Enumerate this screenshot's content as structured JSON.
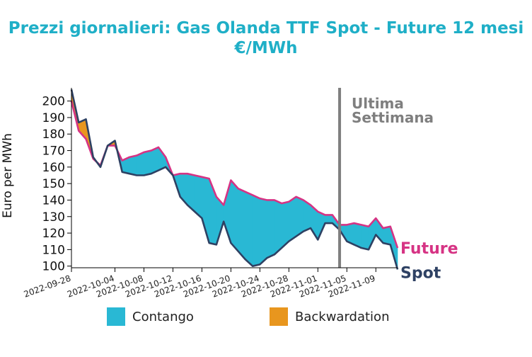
{
  "chart_data": {
    "type": "area",
    "title": "Prezzi giornalieri: Gas Olanda TTF Spot - Future 12 mesi",
    "subtitle": "€/MWh",
    "ylabel": "Euro per MWh",
    "xlabel": "",
    "ylim": [
      99,
      208
    ],
    "yticks": [
      100,
      110,
      120,
      130,
      140,
      150,
      160,
      170,
      180,
      190,
      200
    ],
    "xlim": [
      "2022-09-28",
      "2022-11-12"
    ],
    "xticks": [
      "2022-09-28",
      "2022-10-04",
      "2022-10-08",
      "2022-10-12",
      "2022-10-16",
      "2022-10-20",
      "2022-10-24",
      "2022-10-28",
      "2022-11-01",
      "2022-11-05",
      "2022-11-09"
    ],
    "series": [
      {
        "name": "Future",
        "color": "#d63384",
        "x": [
          "2022-09-28",
          "2022-09-29",
          "2022-09-30",
          "2022-10-01",
          "2022-10-02",
          "2022-10-03",
          "2022-10-04",
          "2022-10-05",
          "2022-10-06",
          "2022-10-07",
          "2022-10-08",
          "2022-10-09",
          "2022-10-10",
          "2022-10-11",
          "2022-10-12",
          "2022-10-13",
          "2022-10-14",
          "2022-10-15",
          "2022-10-16",
          "2022-10-17",
          "2022-10-18",
          "2022-10-19",
          "2022-10-20",
          "2022-10-21",
          "2022-10-22",
          "2022-10-23",
          "2022-10-24",
          "2022-10-25",
          "2022-10-26",
          "2022-10-27",
          "2022-10-28",
          "2022-10-29",
          "2022-10-30",
          "2022-10-31",
          "2022-11-01",
          "2022-11-02",
          "2022-11-03",
          "2022-11-04",
          "2022-11-05",
          "2022-11-06",
          "2022-11-07",
          "2022-11-08",
          "2022-11-09",
          "2022-11-10",
          "2022-11-11",
          "2022-11-12"
        ],
        "values": [
          200,
          182,
          177,
          165,
          161,
          173,
          173,
          164,
          166,
          167,
          169,
          170,
          172,
          166,
          155,
          156,
          156,
          155,
          154,
          153,
          142,
          137,
          152,
          147,
          145,
          143,
          141,
          140,
          140,
          138,
          139,
          142,
          140,
          137,
          133,
          131,
          131,
          125,
          125,
          126,
          125,
          124,
          129,
          123,
          124,
          111
        ]
      },
      {
        "name": "Spot",
        "color": "#2e4163",
        "x": [
          "2022-09-28",
          "2022-09-29",
          "2022-09-30",
          "2022-10-01",
          "2022-10-02",
          "2022-10-03",
          "2022-10-04",
          "2022-10-05",
          "2022-10-06",
          "2022-10-07",
          "2022-10-08",
          "2022-10-09",
          "2022-10-10",
          "2022-10-11",
          "2022-10-12",
          "2022-10-13",
          "2022-10-14",
          "2022-10-15",
          "2022-10-16",
          "2022-10-17",
          "2022-10-18",
          "2022-10-19",
          "2022-10-20",
          "2022-10-21",
          "2022-10-22",
          "2022-10-23",
          "2022-10-24",
          "2022-10-25",
          "2022-10-26",
          "2022-10-27",
          "2022-10-28",
          "2022-10-29",
          "2022-10-30",
          "2022-10-31",
          "2022-11-01",
          "2022-11-02",
          "2022-11-03",
          "2022-11-04",
          "2022-11-05",
          "2022-11-06",
          "2022-11-07",
          "2022-11-08",
          "2022-11-09",
          "2022-11-10",
          "2022-11-11",
          "2022-11-12"
        ],
        "values": [
          207,
          187,
          189,
          166,
          160,
          173,
          176,
          157,
          156,
          155,
          155,
          156,
          158,
          160,
          155,
          142,
          137,
          133,
          129,
          114,
          113,
          127,
          114,
          109,
          104,
          100,
          101,
          105,
          107,
          111,
          115,
          118,
          121,
          123,
          116,
          126,
          126,
          122,
          115,
          113,
          111,
          110,
          119,
          114,
          113,
          98
        ]
      }
    ],
    "fill_legend": [
      {
        "name": "Contango",
        "color": "#29b8d4"
      },
      {
        "name": "Backwardation",
        "color": "#e8961e"
      }
    ],
    "annotations": [
      {
        "text_lines": [
          "Ultima",
          "Settimana"
        ],
        "x": "2022-11-04",
        "type": "vline",
        "color": "#7f7f7f"
      }
    ],
    "end_labels": [
      "Future",
      "Spot"
    ],
    "grid": false,
    "legend_placement": "bottom"
  }
}
